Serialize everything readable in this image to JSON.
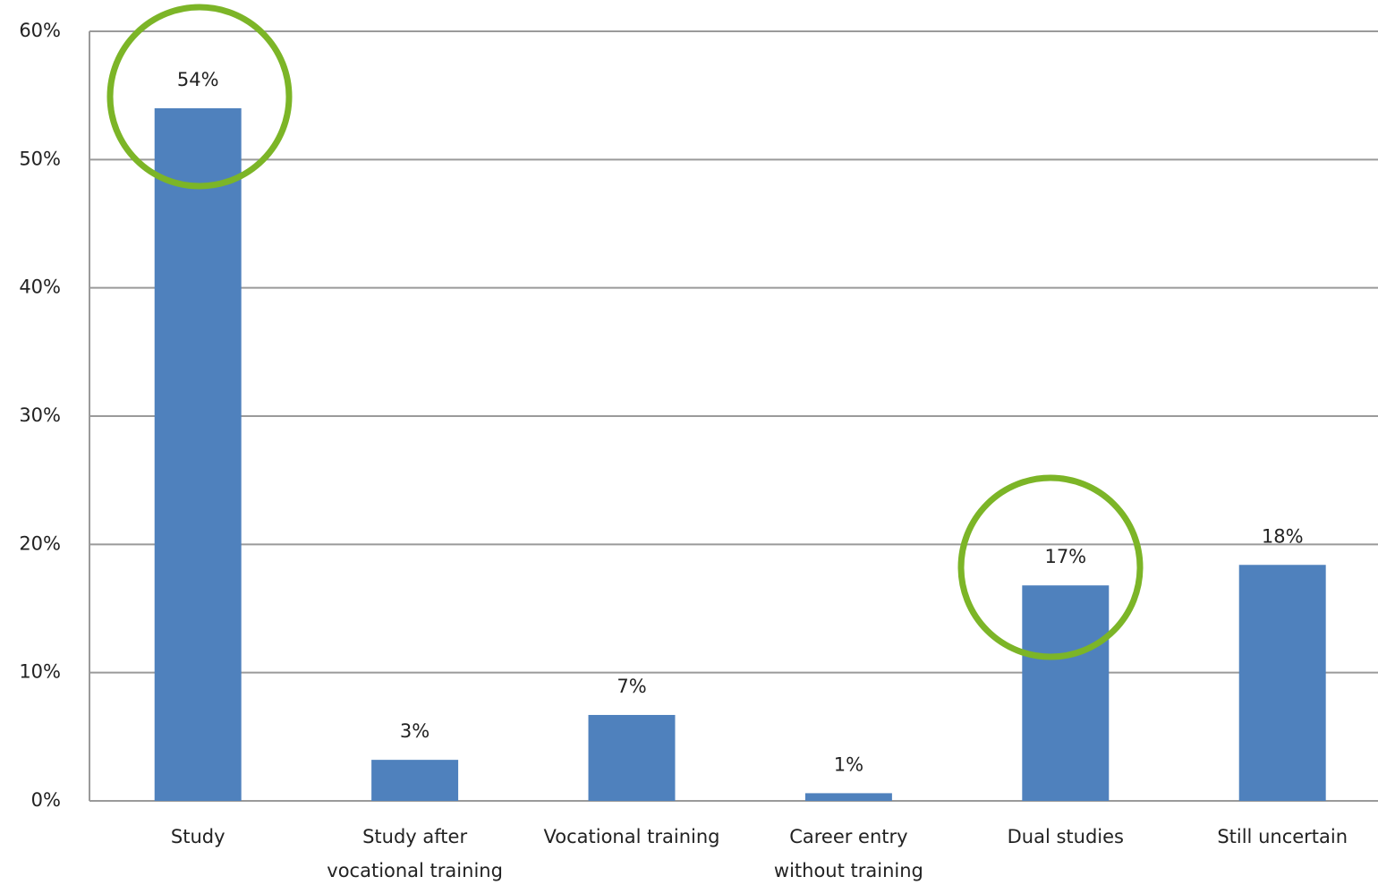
{
  "chart_data": {
    "type": "bar",
    "categories": [
      "Study",
      "Study after\nvocational training",
      "Vocational training",
      "Career entry\nwithout training",
      "Dual studies",
      "Still uncertain"
    ],
    "values": [
      54,
      3.2,
      6.7,
      0.6,
      16.8,
      18.4
    ],
    "value_labels": [
      "54%",
      "3%",
      "7%",
      "1%",
      "17%",
      "18%"
    ],
    "color": "#4f81bd",
    "ylim": [
      0,
      60
    ],
    "yticks": [
      {
        "value": 0,
        "label": "0%"
      },
      {
        "value": 10,
        "label": "10%"
      },
      {
        "value": 20,
        "label": "20%"
      },
      {
        "value": 30,
        "label": "30%"
      },
      {
        "value": 40,
        "label": "40%"
      },
      {
        "value": 50,
        "label": "50%"
      },
      {
        "value": 60,
        "label": "60%"
      }
    ],
    "grid": true
  }
}
